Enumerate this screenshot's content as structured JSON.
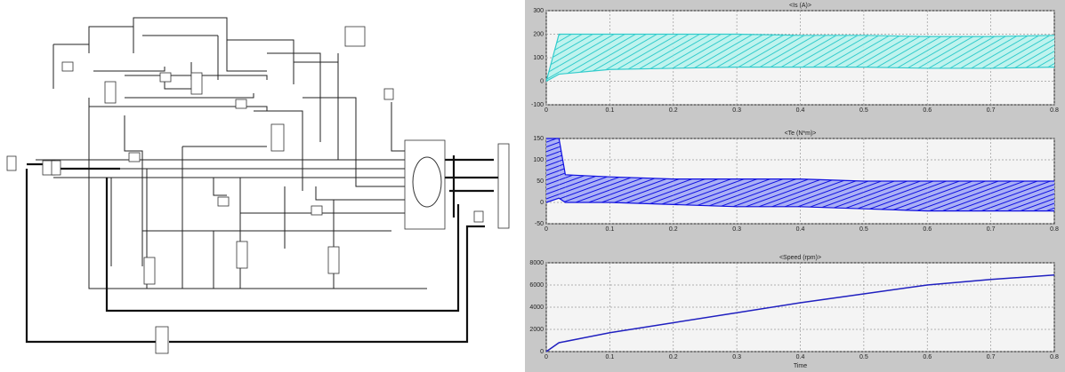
{
  "chart_data": [
    {
      "type": "band",
      "title": "<Is (A)>",
      "color": "#33cccc",
      "x": [
        0,
        0.02,
        0.1,
        0.2,
        0.3,
        0.4,
        0.5,
        0.6,
        0.7,
        0.8
      ],
      "series": [
        {
          "color": "#33cccc",
          "values": [
            0,
            200,
            200,
            200,
            200,
            195,
            195,
            190,
            190,
            195
          ]
        },
        {
          "color": "#33cccc",
          "values": [
            0,
            30,
            50,
            55,
            60,
            60,
            60,
            55,
            55,
            60
          ]
        }
      ],
      "xlim": [
        0,
        0.8
      ],
      "xticks": [
        0,
        0.1,
        0.2,
        0.3,
        0.4,
        0.5,
        0.6,
        0.7,
        0.8
      ],
      "ylim": [
        -100,
        300
      ],
      "yticks": [
        -100,
        0,
        100,
        200,
        300
      ],
      "grid": true
    },
    {
      "type": "band",
      "title": "<Te (N*m)>",
      "color": "#1010e0",
      "x": [
        0,
        0.02,
        0.03,
        0.1,
        0.2,
        0.3,
        0.4,
        0.5,
        0.6,
        0.7,
        0.8
      ],
      "series": [
        {
          "color": "#1010e0",
          "values": [
            150,
            150,
            65,
            60,
            55,
            55,
            55,
            50,
            50,
            50,
            50
          ]
        },
        {
          "color": "#1010e0",
          "values": [
            0,
            10,
            0,
            0,
            -5,
            -10,
            -10,
            -15,
            -20,
            -20,
            -20
          ]
        }
      ],
      "xlim": [
        0,
        0.8
      ],
      "xticks": [
        0,
        0.1,
        0.2,
        0.3,
        0.4,
        0.5,
        0.6,
        0.7,
        0.8
      ],
      "ylim": [
        -50,
        150
      ],
      "yticks": [
        -50,
        0,
        50,
        100,
        150
      ],
      "grid": true
    },
    {
      "type": "line",
      "title": "<Speed (rpm)>",
      "xlabel": "Time",
      "color": "#2020c0",
      "x": [
        0,
        0.02,
        0.1,
        0.2,
        0.3,
        0.4,
        0.5,
        0.6,
        0.7,
        0.8
      ],
      "values": [
        0,
        800,
        1700,
        2600,
        3500,
        4400,
        5200,
        6000,
        6500,
        6900
      ],
      "xlim": [
        0,
        0.8
      ],
      "xticks": [
        0,
        0.1,
        0.2,
        0.3,
        0.4,
        0.5,
        0.6,
        0.7,
        0.8
      ],
      "ylim": [
        0,
        8000
      ],
      "yticks": [
        0,
        2000,
        4000,
        6000,
        8000
      ],
      "grid": true
    }
  ]
}
